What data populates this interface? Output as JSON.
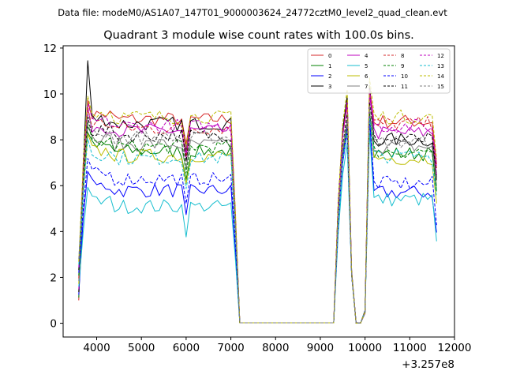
{
  "figure": {
    "suptitle": "Data file: modeM0/AS1A07_147T01_9000003624_24772cztM0_level2_quad_clean.evt",
    "offset_label": "+3.257e8"
  },
  "chart_data": {
    "type": "line",
    "title": "Quadrant 3 module wise count rates with 100.0s bins.",
    "xlabel": "",
    "ylabel": "",
    "xlim": [
      3250,
      12000
    ],
    "ylim": [
      -0.6,
      12.1
    ],
    "x_offset": 325700000,
    "xticks": [
      4000,
      5000,
      6000,
      7000,
      8000,
      9000,
      10000,
      11000,
      12000
    ],
    "yticks": [
      0,
      2,
      4,
      6,
      8,
      10,
      12
    ],
    "grid": false,
    "legend_position": "top-right",
    "legend_ncol": 4,
    "segments": [
      {
        "x0": 3600,
        "x1": 7200,
        "step": 100
      },
      {
        "x0": 7200,
        "x1": 9300,
        "step": 2100
      },
      {
        "x0": 9300,
        "x1": 9600,
        "step": 100
      },
      {
        "x0": 9700,
        "x1": 9900,
        "step": 100
      },
      {
        "x0": 10000,
        "x1": 11600,
        "step": 100
      }
    ],
    "series": [
      {
        "name": "0",
        "color": "#d62728",
        "dash": false,
        "level1": 8.9,
        "level2": 9.3,
        "level3": 8.8
      },
      {
        "name": "1",
        "color": "#008000",
        "dash": false,
        "level1": 7.5,
        "level2": 8.2,
        "level3": 7.4
      },
      {
        "name": "2",
        "color": "#0000ff",
        "dash": false,
        "level1": 5.8,
        "level2": 7.8,
        "level3": 5.7
      },
      {
        "name": "3",
        "color": "#000000",
        "dash": false,
        "level1": 8.7,
        "level2": 9.4,
        "level3": 8.0,
        "first_peak": 11.45
      },
      {
        "name": "4",
        "color": "#bf00bf",
        "dash": false,
        "level1": 8.4,
        "level2": 9.0,
        "level3": 8.3
      },
      {
        "name": "5",
        "color": "#17becf",
        "dash": false,
        "level1": 5.1,
        "level2": 7.3,
        "level3": 5.4
      },
      {
        "name": "6",
        "color": "#bcbd00",
        "dash": false,
        "level1": 7.3,
        "level2": 8.0,
        "level3": 7.2
      },
      {
        "name": "7",
        "color": "#7f7f7f",
        "dash": false,
        "level1": 7.8,
        "level2": 8.3,
        "level3": 7.7
      },
      {
        "name": "8",
        "color": "#d62728",
        "dash": true,
        "level1": 8.5,
        "level2": 9.1,
        "level3": 8.7
      },
      {
        "name": "9",
        "color": "#008000",
        "dash": true,
        "level1": 7.7,
        "level2": 8.1,
        "level3": 7.5
      },
      {
        "name": "10",
        "color": "#0000ff",
        "dash": true,
        "level1": 6.3,
        "level2": 8.0,
        "level3": 6.1
      },
      {
        "name": "11",
        "color": "#000000",
        "dash": true,
        "level1": 8.2,
        "level2": 8.6,
        "level3": 8.0
      },
      {
        "name": "12",
        "color": "#bf00bf",
        "dash": true,
        "level1": 8.6,
        "level2": 9.2,
        "level3": 8.6
      },
      {
        "name": "13",
        "color": "#17becf",
        "dash": true,
        "level1": 7.2,
        "level2": 7.9,
        "level3": 7.3
      },
      {
        "name": "14",
        "color": "#bcbd00",
        "dash": true,
        "level1": 9.0,
        "level2": 9.7,
        "level3": 9.0
      },
      {
        "name": "15",
        "color": "#7f7f7f",
        "dash": true,
        "level1": 8.1,
        "level2": 8.4,
        "level3": 7.9
      }
    ]
  }
}
